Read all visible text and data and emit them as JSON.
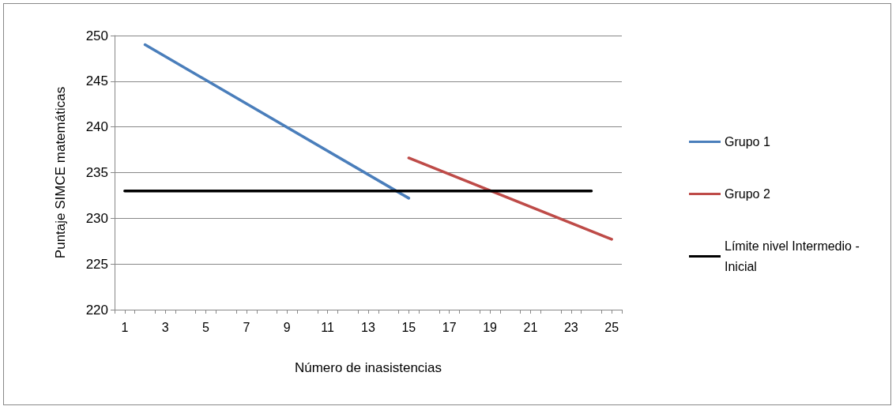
{
  "chart_data": {
    "type": "line",
    "xlabel": "Número de inasistencias",
    "ylabel": "Puntaje SIMCE matemáticas",
    "series": [
      {
        "name": "Grupo 1",
        "color": "#4a7ebb",
        "x": [
          2,
          15
        ],
        "values": [
          249.0,
          232.2
        ]
      },
      {
        "name": "Grupo 2",
        "color": "#be4b48",
        "x": [
          15,
          25
        ],
        "values": [
          236.6,
          227.7
        ]
      },
      {
        "name": "Límite nivel Intermedio - Inicial",
        "color": "#000000",
        "x": [
          1,
          24
        ],
        "values": [
          233,
          233
        ]
      }
    ],
    "xlim": [
      0.5,
      25.5
    ],
    "xticks": [
      1,
      3,
      5,
      7,
      9,
      11,
      13,
      15,
      17,
      19,
      21,
      23,
      25,
      {
        "value": 0.5,
        "label": null
      },
      {
        "value": 1.5,
        "label": null
      },
      {
        "value": 2.5,
        "label": null
      },
      {
        "value": 3.5,
        "label": null
      },
      {
        "value": 4.5,
        "label": null
      },
      {
        "value": 5.5,
        "label": null
      },
      {
        "value": 6.5,
        "label": null
      },
      {
        "value": 7.5,
        "label": null
      },
      {
        "value": 8.5,
        "label": null
      },
      {
        "value": 9.5,
        "label": null
      },
      {
        "value": 10.5,
        "label": null
      },
      {
        "value": 11.5,
        "label": null
      },
      {
        "value": 12.5,
        "label": null
      },
      {
        "value": 13.5,
        "label": null
      },
      {
        "value": 14.5,
        "label": null
      },
      {
        "value": 15.5,
        "label": null
      },
      {
        "value": 16.5,
        "label": null
      },
      {
        "value": 17.5,
        "label": null
      },
      {
        "value": 18.5,
        "label": null
      },
      {
        "value": 19.5,
        "label": null
      },
      {
        "value": 20.5,
        "label": null
      },
      {
        "value": 21.5,
        "label": null
      },
      {
        "value": 22.5,
        "label": null
      },
      {
        "value": 23.5,
        "label": null
      },
      {
        "value": 24.5,
        "label": null
      },
      {
        "value": 25.5,
        "label": null
      }
    ],
    "ylim": [
      220,
      250
    ],
    "yticks": [
      220,
      225,
      230,
      235,
      240,
      245,
      250
    ],
    "grid": "y",
    "legend": "right",
    "marker": "none",
    "line_style": "solid"
  }
}
